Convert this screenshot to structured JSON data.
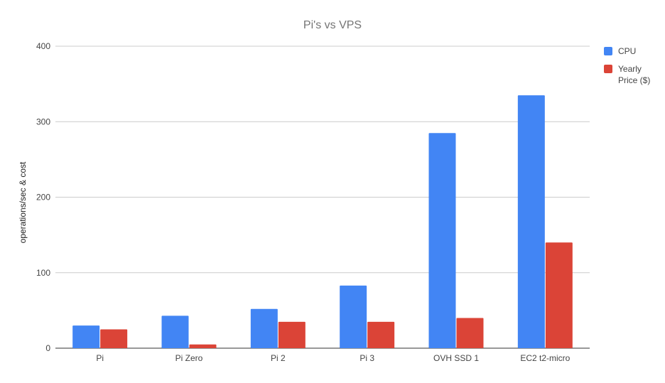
{
  "chart_data": {
    "type": "bar",
    "title": "Pi's vs VPS",
    "xlabel": "",
    "ylabel": "operations/sec & cost",
    "categories": [
      "Pi",
      "Pi Zero",
      "Pi 2",
      "Pi 3",
      "OVH SSD 1",
      "EC2 t2-micro"
    ],
    "series": [
      {
        "name": "CPU",
        "color": "#4285f4",
        "values": [
          30,
          43,
          52,
          83,
          285,
          335
        ]
      },
      {
        "name": "Yearly Price ($)",
        "color": "#db4437",
        "values": [
          25,
          5,
          35,
          35,
          40,
          140
        ]
      }
    ],
    "ylim": [
      0,
      400
    ],
    "yticks": [
      0,
      100,
      200,
      300,
      400
    ],
    "grid": true,
    "legend": "right"
  }
}
